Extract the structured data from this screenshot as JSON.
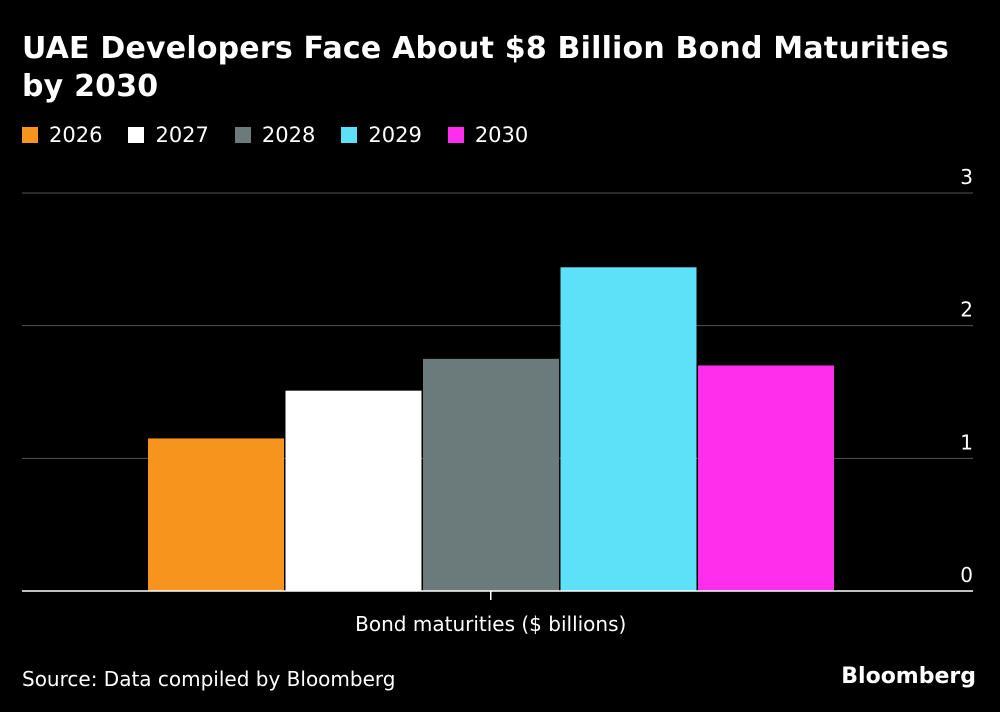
{
  "chart_data": {
    "type": "bar",
    "title": "UAE Developers Face About $8 Billion Bond Maturities by 2030",
    "xlabel": "Bond maturities ($ billions)",
    "ylabel": "",
    "ylim": [
      0,
      3
    ],
    "yticks": [
      "0",
      "1",
      "2",
      "3"
    ],
    "grid": true,
    "legend_position": "top-left",
    "series": [
      {
        "name": "2026",
        "value": 1.15,
        "color": "#f7941d"
      },
      {
        "name": "2027",
        "value": 1.51,
        "color": "#ffffff"
      },
      {
        "name": "2028",
        "value": 1.75,
        "color": "#6b7a7a"
      },
      {
        "name": "2029",
        "value": 2.44,
        "color": "#5ce1f9"
      },
      {
        "name": "2030",
        "value": 1.7,
        "color": "#ff2eec"
      }
    ]
  },
  "footer": {
    "source": "Source: Data compiled by Bloomberg",
    "brand": "Bloomberg"
  }
}
